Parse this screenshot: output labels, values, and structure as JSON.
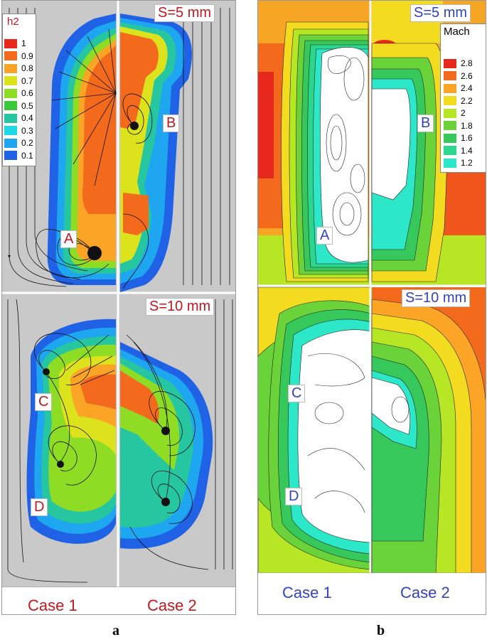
{
  "panel_a": {
    "legend": {
      "title": "h2",
      "levels": [
        "1",
        "0.9",
        "0.8",
        "0.7",
        "0.6",
        "0.5",
        "0.4",
        "0.3",
        "0.2",
        "0.1"
      ],
      "colors": [
        "#e8281d",
        "#f46a1c",
        "#fba426",
        "#dce21c",
        "#8fdc25",
        "#3cc83c",
        "#25c6a0",
        "#1ed8e6",
        "#1fa6f0",
        "#1f62e6"
      ]
    },
    "top_label": "S=5 mm",
    "bottom_label": "S=10 mm",
    "markers": [
      "A",
      "B",
      "C",
      "D"
    ],
    "case_left": "Case 1",
    "case_right": "Case 2",
    "sublabel": "a"
  },
  "panel_b": {
    "legend": {
      "title": "Mach",
      "levels": [
        "2.8",
        "2.6",
        "2.4",
        "2.2",
        "2",
        "1.8",
        "1.6",
        "1.4",
        "1.2"
      ],
      "colors": [
        "#e8281d",
        "#f46a1c",
        "#fba426",
        "#f3dc20",
        "#b7e624",
        "#6bd33a",
        "#36c85a",
        "#2bd78c",
        "#2de8c8"
      ]
    },
    "top_label": "S=5 mm",
    "bottom_label": "S=10 mm",
    "markers": [
      "A",
      "B",
      "C",
      "D"
    ],
    "case_left": "Case 1",
    "case_right": "Case 2",
    "sublabel": "b"
  }
}
